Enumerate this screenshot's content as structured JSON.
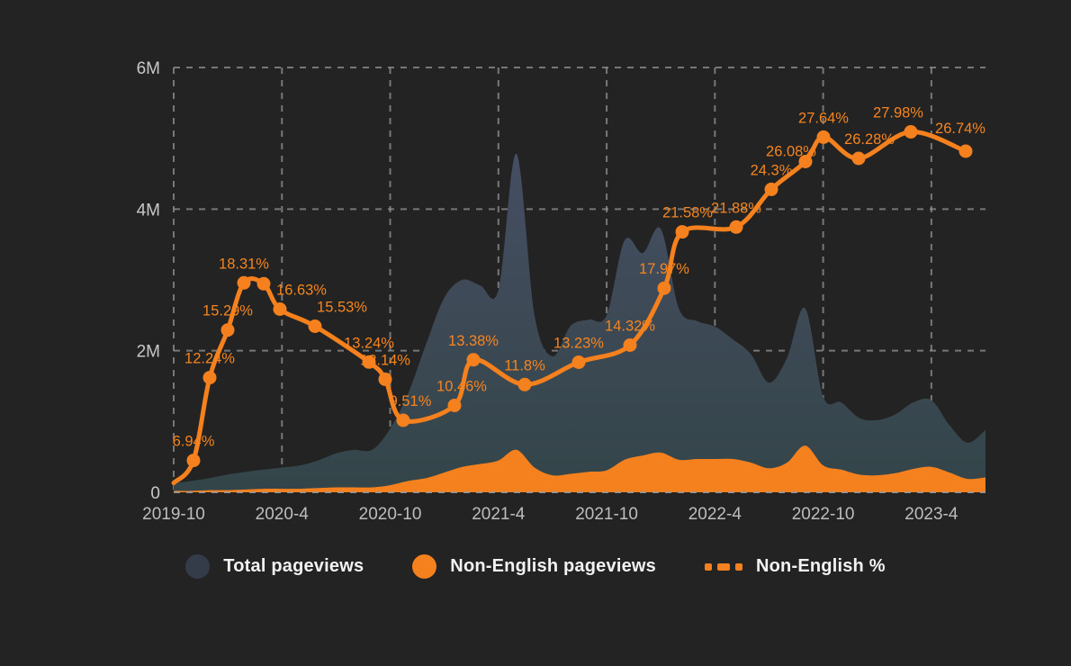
{
  "colors": {
    "background": "#232323",
    "orange": "#F5801E",
    "label_orange": "#F6851F",
    "total_area_top": "#49506A",
    "total_area_mid": "#3E4A57",
    "total_area_bottom": "#334549",
    "total_legend": "#353C49",
    "grid": "#9B9B9B",
    "y_tick_text": "#C8C8C8",
    "x_tick_text": "#BDBDBD",
    "legend_text": "#F2F2F2"
  },
  "legend": {
    "position": "bottom-center",
    "items": [
      {
        "label": "Total pageviews",
        "marker": "circle-dark"
      },
      {
        "label": "Non-English pageviews",
        "marker": "circle-orange"
      },
      {
        "label": "Non-English %",
        "marker": "dashed-orange-line"
      }
    ]
  },
  "chart_data": {
    "type": "area",
    "title": "",
    "xlabel": "",
    "ylabel": "",
    "grid": "dashed, horizontal and vertical, no right frame",
    "x_range": [
      "2019-10",
      "2023-7"
    ],
    "months_total": 46,
    "x_ticks": [
      "2019-10",
      "2020-4",
      "2020-10",
      "2021-4",
      "2021-10",
      "2022-4",
      "2022-10",
      "2023-4"
    ],
    "x_tick_month_step": 6,
    "y_axis": {
      "min_millions": 0,
      "max_millions": 6,
      "tick_labels": [
        "0",
        "2M",
        "4M",
        "6M"
      ]
    },
    "percent_axis": {
      "min": 4.9,
      "max": 32.1,
      "shown": false
    },
    "series": [
      {
        "name": "Total pageviews",
        "type": "area",
        "unit": "millions",
        "values": [
          0.13,
          0.16,
          0.2,
          0.25,
          0.29,
          0.32,
          0.35,
          0.38,
          0.45,
          0.55,
          0.6,
          0.6,
          0.9,
          1.4,
          2.1,
          2.75,
          3.0,
          2.92,
          2.86,
          4.78,
          2.5,
          1.92,
          2.35,
          2.44,
          2.5,
          3.56,
          3.38,
          3.72,
          2.6,
          2.42,
          2.34,
          2.16,
          1.95,
          1.55,
          1.9,
          2.6,
          1.35,
          1.27,
          1.05,
          1.02,
          1.1,
          1.27,
          1.3,
          0.95,
          0.7,
          0.88
        ]
      },
      {
        "name": "Non-English pageviews",
        "type": "area",
        "unit": "millions",
        "values": [
          0.02,
          0.02,
          0.03,
          0.03,
          0.04,
          0.05,
          0.05,
          0.05,
          0.06,
          0.07,
          0.07,
          0.07,
          0.1,
          0.16,
          0.2,
          0.28,
          0.36,
          0.4,
          0.45,
          0.6,
          0.35,
          0.24,
          0.26,
          0.29,
          0.31,
          0.46,
          0.52,
          0.56,
          0.46,
          0.47,
          0.47,
          0.47,
          0.42,
          0.34,
          0.42,
          0.66,
          0.38,
          0.32,
          0.25,
          0.24,
          0.27,
          0.33,
          0.36,
          0.28,
          0.19,
          0.21
        ]
      },
      {
        "name": "Non-English %",
        "type": "line",
        "style": "solid orange line with round markers and point labels",
        "points": [
          {
            "f": 0.0,
            "v": 5.5,
            "marker": false
          },
          {
            "f": 0.0244,
            "v": 6.94,
            "label": "6.94%"
          },
          {
            "f": 0.0443,
            "v": 12.24,
            "label": "12.24%"
          },
          {
            "f": 0.0665,
            "v": 15.29,
            "label": "15.29%"
          },
          {
            "f": 0.0865,
            "v": 18.31,
            "label": "18.31%"
          },
          {
            "f": 0.1109,
            "v": 18.25
          },
          {
            "f": 0.1308,
            "v": 16.63,
            "label": "16.63%",
            "dx": 24
          },
          {
            "f": 0.1741,
            "v": 15.53,
            "label": "15.53%",
            "dx": 30
          },
          {
            "f": 0.2406,
            "v": 13.24,
            "label": "13.24%"
          },
          {
            "f": 0.2605,
            "v": 12.14,
            "label": "12.14%"
          },
          {
            "f": 0.2827,
            "v": 9.51,
            "label": "9.51%",
            "dx": 8
          },
          {
            "f": 0.3459,
            "v": 10.46,
            "label": "10.46%",
            "dx": 8
          },
          {
            "f": 0.3692,
            "v": 13.38,
            "label": "13.38%"
          },
          {
            "f": 0.4324,
            "v": 11.8,
            "label": "11.8%"
          },
          {
            "f": 0.4989,
            "v": 13.23,
            "label": "13.23%"
          },
          {
            "f": 0.5621,
            "v": 14.32,
            "label": "14.32%"
          },
          {
            "f": 0.6042,
            "v": 17.97,
            "label": "17.97%"
          },
          {
            "f": 0.6264,
            "v": 21.58,
            "label": "21.58%",
            "dx": 6
          },
          {
            "f": 0.6929,
            "v": 21.88,
            "label": "21.88%"
          },
          {
            "f": 0.7361,
            "v": 24.3,
            "label": "24.3%"
          },
          {
            "f": 0.7783,
            "v": 26.08,
            "label": "26.08%",
            "dx": -16,
            "dy": 10
          },
          {
            "f": 0.8004,
            "v": 27.64,
            "label": "27.64%"
          },
          {
            "f": 0.8437,
            "v": 26.28,
            "label": "26.28%",
            "dx": 12
          },
          {
            "f": 0.908,
            "v": 27.98,
            "label": "27.98%",
            "dx": -14
          },
          {
            "f": 0.9756,
            "v": 26.74,
            "label": "26.74%",
            "dx": -6,
            "dy": -4
          }
        ]
      }
    ]
  }
}
